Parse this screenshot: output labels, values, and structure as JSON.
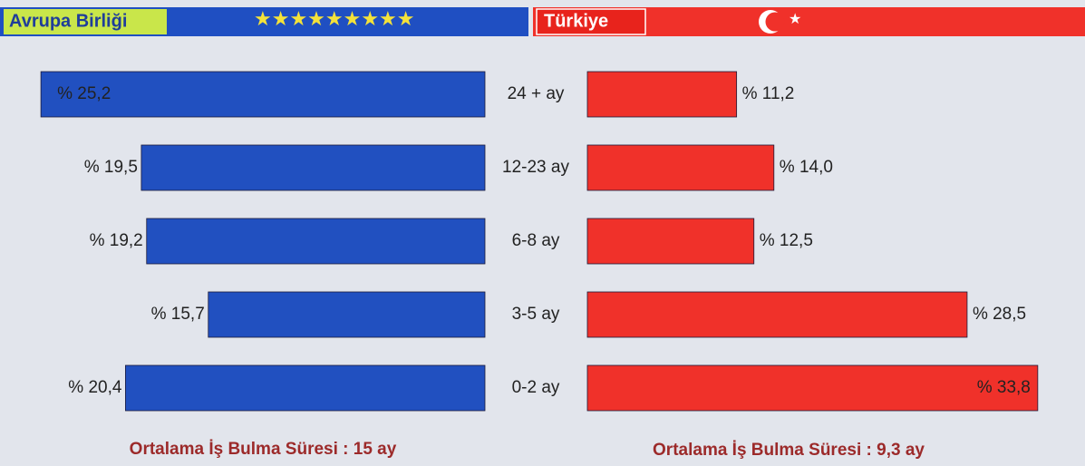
{
  "chart_data": [
    {
      "type": "bar",
      "title": "Avrupa Birliği",
      "categories": [
        "24 + ay",
        "12-23 ay",
        "6-8 ay",
        "3-5 ay",
        "0-2 ay"
      ],
      "values": [
        25.2,
        19.5,
        19.2,
        15.7,
        20.4
      ],
      "value_labels": [
        "% 25,2",
        "% 19,5",
        "% 19,2",
        "% 15,7",
        "% 20,4"
      ],
      "color": "#2150c0",
      "annotation": "Ortalama İş Bulma Süresi : 15 ay"
    },
    {
      "type": "bar",
      "title": "Türkiye",
      "values": [
        11.2,
        14.0,
        12.5,
        28.5,
        33.8
      ],
      "value_labels": [
        "% 11,2",
        "% 14,0",
        "% 12,5",
        "% 28,5",
        "% 33,8"
      ],
      "color": "#f0312a",
      "annotation": "Ortalama İş Bulma Süresi : 9,3 ay"
    }
  ]
}
